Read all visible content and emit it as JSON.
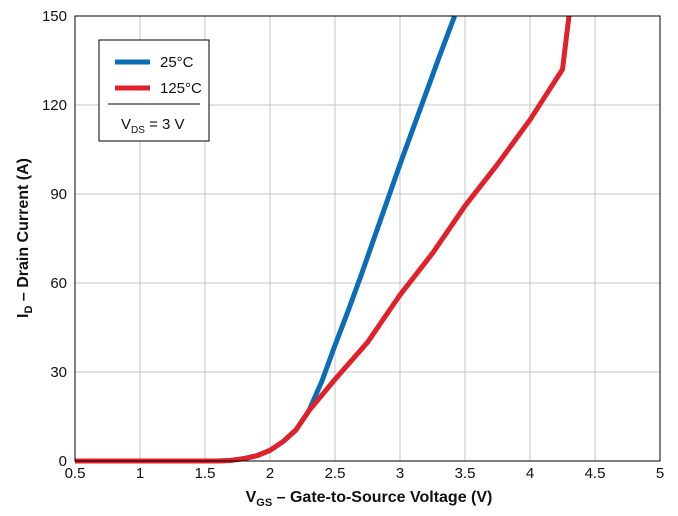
{
  "chart_data": {
    "type": "line",
    "xlabel": {
      "symbol": "V",
      "sub": "GS",
      "rest": " – Gate-to-Source Voltage (V)"
    },
    "ylabel": {
      "symbol": "I",
      "sub": "D",
      "rest": " – Drain Current (A)"
    },
    "xlim": [
      0.5,
      5
    ],
    "ylim": [
      0,
      150
    ],
    "x_ticks": [
      0.5,
      1,
      1.5,
      2,
      2.5,
      3,
      3.5,
      4,
      4.5,
      5
    ],
    "x_tick_labels": [
      "0.5",
      "1",
      "1.5",
      "2",
      "2.5",
      "3",
      "3.5",
      "4",
      "4.5",
      "5"
    ],
    "y_ticks": [
      0,
      30,
      60,
      90,
      120,
      150
    ],
    "y_tick_labels": [
      "0",
      "30",
      "60",
      "90",
      "120",
      "150"
    ],
    "grid": true,
    "legend_position": "top-left",
    "legend_note": {
      "symbol": "V",
      "sub": "DS",
      "rest": " = 3 V"
    },
    "series": [
      {
        "name": "25°C",
        "color": "#0a6db5",
        "points": [
          [
            0.5,
            0
          ],
          [
            1.6,
            0
          ],
          [
            1.7,
            0.2
          ],
          [
            1.8,
            0.8
          ],
          [
            1.9,
            1.8
          ],
          [
            2.0,
            3.6
          ],
          [
            2.1,
            6.5
          ],
          [
            2.2,
            10.5
          ],
          [
            2.3,
            17
          ],
          [
            2.4,
            27
          ],
          [
            2.5,
            39
          ],
          [
            2.6,
            50.5
          ],
          [
            2.7,
            62.5
          ],
          [
            2.8,
            75
          ],
          [
            2.9,
            87.5
          ],
          [
            3.0,
            100
          ],
          [
            3.1,
            112
          ],
          [
            3.2,
            124
          ],
          [
            3.3,
            136
          ],
          [
            3.42,
            150
          ]
        ]
      },
      {
        "name": "125°C",
        "color": "#e0202a",
        "points": [
          [
            0.5,
            0
          ],
          [
            1.6,
            0
          ],
          [
            1.7,
            0.2
          ],
          [
            1.8,
            0.8
          ],
          [
            1.9,
            1.8
          ],
          [
            2.0,
            3.6
          ],
          [
            2.1,
            6.5
          ],
          [
            2.2,
            10.5
          ],
          [
            2.3,
            17
          ],
          [
            2.5,
            27.5
          ],
          [
            2.75,
            40
          ],
          [
            3.0,
            56
          ],
          [
            3.25,
            70
          ],
          [
            3.5,
            86
          ],
          [
            3.75,
            100
          ],
          [
            4.0,
            115
          ],
          [
            4.25,
            132
          ],
          [
            4.3,
            150
          ]
        ]
      }
    ]
  }
}
